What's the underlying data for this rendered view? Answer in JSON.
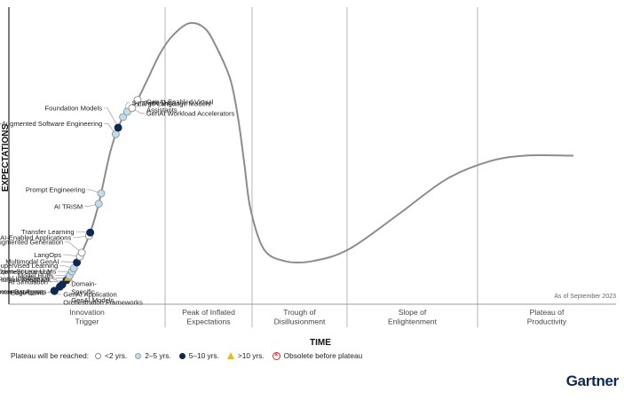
{
  "chart_data": {
    "type": "hype-cycle",
    "y_axis_label": "EXPECTATIONS",
    "x_axis_label": "TIME",
    "as_of": "As of September 2023",
    "phases": [
      "Innovation\nTrigger",
      "Peak of Inflated\nExpectations",
      "Trough of\nDisillusionment",
      "Slope of\nEnlightenment",
      "Plateau of\nProductivity"
    ],
    "technologies": [
      {
        "name": "Edge LLMs",
        "t": 0.035,
        "plateau": "2-5"
      },
      {
        "name": "GenAI Application\nOrchestration Frameworks",
        "t": 0.05,
        "plateau": "5-10"
      },
      {
        "name": "Autonomous Agents",
        "t": 0.058,
        "plateau": "5-10"
      },
      {
        "name": "Vector Databases",
        "t": 0.067,
        "plateau": "5-10"
      },
      {
        "name": "Reinforcement Learning\nFrom Human Feedback",
        "t": 0.084,
        "plateau": "5-10"
      },
      {
        "name": "Domain-\nSpecific\nGenAI Models",
        "t": 0.088,
        "plateau": "5-10"
      },
      {
        "name": "AI Simulation",
        "t": 0.095,
        "plateau": "5-10"
      },
      {
        "name": "Artificial General Intelligence",
        "t": 0.098,
        "plateau": ">10"
      },
      {
        "name": "Model Hubs",
        "t": 0.1,
        "plateau": "2-5"
      },
      {
        "name": "Open-Source LLMs",
        "t": 0.104,
        "plateau": "2-5"
      },
      {
        "name": "Self-Supervised Learning",
        "t": 0.107,
        "plateau": "2-5"
      },
      {
        "name": "Multimodal GenAI",
        "t": 0.112,
        "plateau": "5-10"
      },
      {
        "name": "LangOps",
        "t": 0.117,
        "plateau": "<2"
      },
      {
        "name": "Retrieval Augmented Generation",
        "t": 0.12,
        "plateau": "<2"
      },
      {
        "name": "Generative AI-Enabled Applications",
        "t": 0.132,
        "plateau": "<2"
      },
      {
        "name": "Transfer Learning",
        "t": 0.134,
        "plateau": "5-10"
      },
      {
        "name": "AI TRiSM",
        "t": 0.148,
        "plateau": "2-5"
      },
      {
        "name": "Prompt Engineering",
        "t": 0.152,
        "plateau": "2-5"
      },
      {
        "name": "AI-Augmented Software Engineering",
        "t": 0.176,
        "plateau": "2-5"
      },
      {
        "name": "Foundation Models",
        "t": 0.18,
        "plateau": "5-10"
      },
      {
        "name": "Synthetic Data",
        "t": 0.188,
        "plateau": "2-5"
      },
      {
        "name": "Large Language Models",
        "t": 0.195,
        "plateau": "2-5"
      },
      {
        "name": "GenAI Workload Accelerators",
        "t": 0.203,
        "plateau": "<2"
      },
      {
        "name": "GenAI-Enabled Virtual\nAssistants",
        "t": 0.212,
        "plateau": "<2"
      }
    ]
  },
  "legend": {
    "title": "Plateau will be reached:",
    "items": [
      {
        "key": "<2",
        "label": "<2 yrs.",
        "symbol": "white-dot"
      },
      {
        "key": "2-5",
        "label": "2–5 yrs.",
        "symbol": "light-dot"
      },
      {
        "key": "5-10",
        "label": "5–10 yrs.",
        "symbol": "dark-dot"
      },
      {
        "key": ">10",
        "label": ">10 yrs.",
        "symbol": "triangle"
      },
      {
        "key": "obsolete",
        "label": "Obsolete before plateau",
        "symbol": "x-circle"
      }
    ]
  },
  "colors": {
    "curve": "#8c8c8c",
    "grid": "#b5b5b5",
    "white_dot": "#ffffff",
    "light_dot": "#c6dbe6",
    "dark_dot": "#0d2950",
    "triangle": "#f0b429",
    "obsolete": "#dd2222",
    "brand": "#0d2950"
  },
  "brand": "Gartner"
}
